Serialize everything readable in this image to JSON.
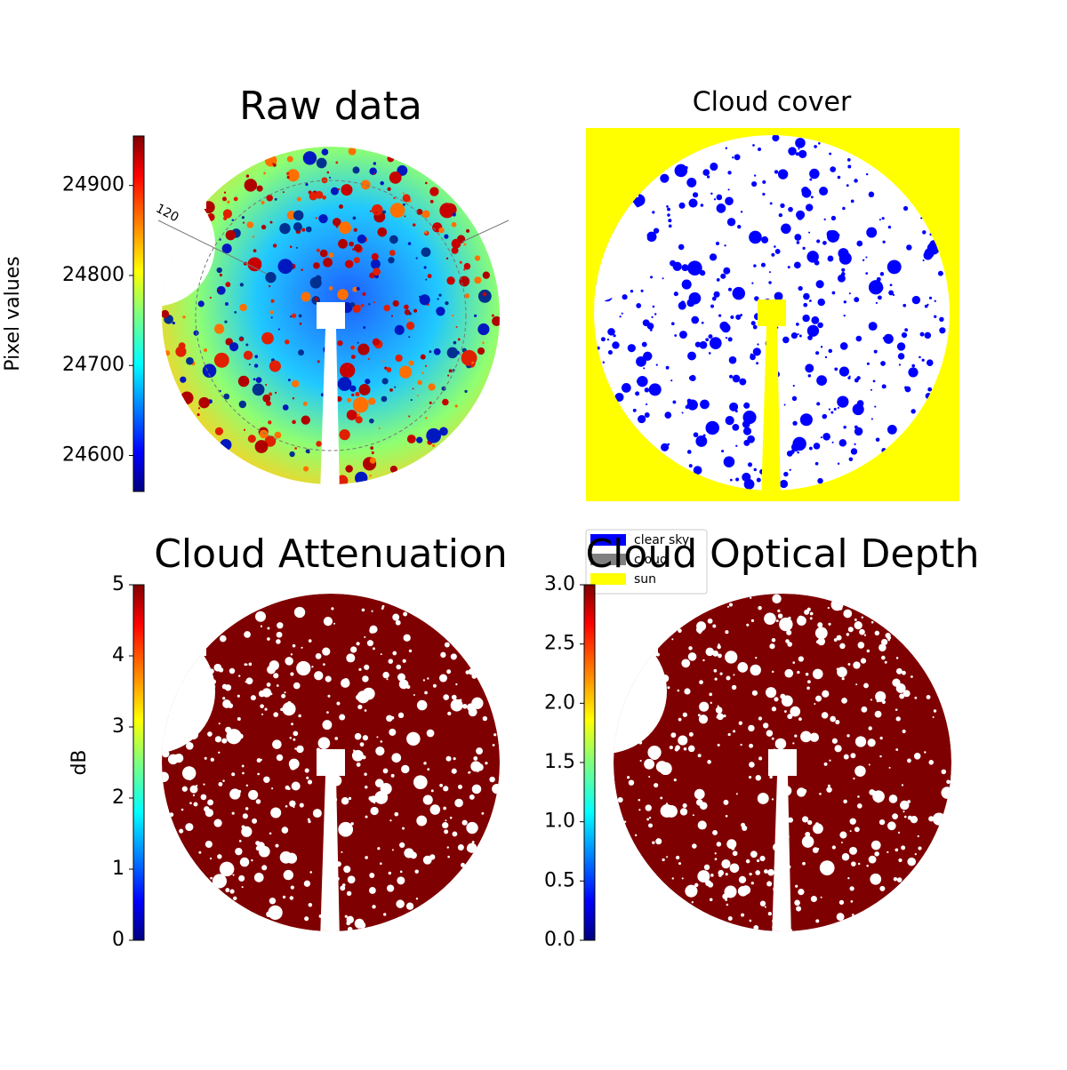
{
  "chart_data": [
    {
      "type": "image",
      "title": "Raw data",
      "annotations": [
        "120"
      ],
      "colorbar": {
        "label": "Pixel values",
        "ylim": [
          24560,
          24955
        ],
        "yticks": [
          24600,
          24700,
          24800,
          24900
        ]
      }
    },
    {
      "type": "image",
      "title": "Cloud cover",
      "series": [
        {
          "name": "clear sky",
          "color": "#0000ff"
        },
        {
          "name": "cloud",
          "color": "#808080"
        },
        {
          "name": "sun",
          "color": "#ffff00"
        }
      ]
    },
    {
      "type": "image",
      "title": "Cloud Attenuation",
      "colorbar": {
        "label": "dB",
        "ylim": [
          0,
          5
        ],
        "yticks": [
          0,
          1,
          2,
          3,
          4,
          5
        ]
      }
    },
    {
      "type": "image",
      "title": "Cloud Optical Depth",
      "colorbar": {
        "ylim": [
          0,
          3
        ],
        "yticks": [
          {
            "value": 0,
            "label": "0.0"
          },
          {
            "value": 0.5,
            "label": "0.5"
          },
          {
            "value": 1,
            "label": "1.0"
          },
          {
            "value": 1.5,
            "label": "1.5"
          },
          {
            "value": 2,
            "label": "2.0"
          },
          {
            "value": 2.5,
            "label": "2.5"
          },
          {
            "value": 3,
            "label": "3.0"
          }
        ]
      }
    }
  ]
}
